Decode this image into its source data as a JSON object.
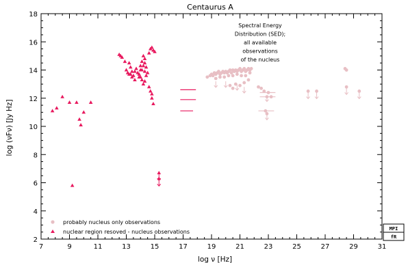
{
  "chart_data": {
    "type": "scatter",
    "title": "Centaurus A",
    "xlabel": "log ν [Hz]",
    "ylabel": "log (νFν) [Jy Hz]",
    "xlim": [
      7,
      31
    ],
    "ylim": [
      2,
      18
    ],
    "xticks": [
      7,
      9,
      11,
      13,
      15,
      17,
      19,
      21,
      23,
      25,
      27,
      29,
      31
    ],
    "yticks": [
      2,
      4,
      6,
      8,
      10,
      12,
      14,
      16,
      18
    ],
    "annotation": [
      "Spectral Energy",
      "Distribution (SED);",
      "all available",
      "observations",
      "of the nucleus"
    ],
    "legend_position": "bottom-left",
    "series": [
      {
        "name": "probably nucleus only observations",
        "marker": "circle",
        "color": "#e8bfc4",
        "points": [
          [
            18.7,
            13.5
          ],
          [
            18.9,
            13.6
          ],
          [
            19.0,
            13.7
          ],
          [
            19.1,
            13.6
          ],
          [
            19.2,
            13.8
          ],
          [
            19.3,
            13.7
          ],
          [
            19.4,
            13.8
          ],
          [
            19.5,
            13.9
          ],
          [
            19.6,
            13.7
          ],
          [
            19.7,
            13.8
          ],
          [
            19.8,
            13.9
          ],
          [
            19.9,
            13.8
          ],
          [
            20.0,
            13.9
          ],
          [
            20.1,
            13.8
          ],
          [
            20.2,
            13.9
          ],
          [
            20.3,
            14.0
          ],
          [
            20.4,
            13.8
          ],
          [
            20.5,
            14.0
          ],
          [
            20.6,
            13.9
          ],
          [
            20.7,
            14.0
          ],
          [
            20.8,
            13.9
          ],
          [
            20.9,
            14.0
          ],
          [
            21.0,
            14.1
          ],
          [
            21.1,
            13.9
          ],
          [
            21.2,
            14.0
          ],
          [
            21.3,
            14.1
          ],
          [
            21.4,
            13.9
          ],
          [
            21.5,
            14.0
          ],
          [
            21.6,
            14.1
          ],
          [
            21.7,
            14.0
          ],
          [
            21.8,
            14.1
          ],
          [
            19.3,
            13.4
          ],
          [
            19.6,
            13.5
          ],
          [
            19.9,
            13.5
          ],
          [
            20.2,
            13.6
          ],
          [
            20.5,
            13.6
          ],
          [
            20.8,
            13.7
          ],
          [
            21.1,
            13.6
          ],
          [
            21.4,
            13.6
          ],
          [
            21.7,
            13.8
          ],
          [
            20.3,
            12.9
          ],
          [
            20.7,
            13.0
          ],
          [
            21.0,
            12.9
          ],
          [
            21.3,
            13.1
          ],
          [
            21.6,
            13.3
          ],
          [
            20.5,
            12.7
          ],
          [
            22.3,
            12.8
          ],
          [
            22.5,
            12.7
          ],
          [
            22.7,
            12.5
          ],
          [
            23.0,
            12.4
          ],
          [
            22.9,
            12.1
          ],
          [
            23.2,
            12.1
          ],
          [
            22.8,
            11.1
          ],
          [
            22.9,
            10.9
          ],
          [
            25.8,
            12.5
          ],
          [
            26.4,
            12.5
          ],
          [
            28.4,
            14.1
          ],
          [
            28.5,
            14.0
          ],
          [
            28.5,
            12.8
          ],
          [
            29.4,
            12.5
          ]
        ],
        "upper_limits": [
          [
            19.3,
            13.2
          ],
          [
            20.0,
            13.2
          ],
          [
            20.8,
            13.0
          ],
          [
            21.3,
            12.8
          ],
          [
            22.9,
            12.2
          ],
          [
            25.8,
            12.4
          ],
          [
            26.4,
            12.4
          ],
          [
            28.5,
            12.7
          ],
          [
            29.4,
            12.4
          ],
          [
            22.9,
            10.9
          ]
        ],
        "x_error_bars": [
          [
            22.4,
            23.5,
            12.4
          ],
          [
            22.4,
            23.5,
            12.1
          ],
          [
            22.3,
            23.4,
            11.1
          ]
        ]
      },
      {
        "name": "nuclear region resoved - nucleus observations",
        "marker": "triangle",
        "color": "#e8195e",
        "points": [
          [
            7.8,
            11.1
          ],
          [
            8.1,
            11.3
          ],
          [
            8.5,
            12.1
          ],
          [
            9.0,
            11.7
          ],
          [
            9.5,
            11.7
          ],
          [
            9.7,
            10.5
          ],
          [
            10.0,
            11.0
          ],
          [
            9.8,
            10.1
          ],
          [
            10.5,
            11.7
          ],
          [
            9.2,
            5.8
          ],
          [
            12.5,
            15.1
          ],
          [
            12.6,
            15.0
          ],
          [
            12.7,
            14.9
          ],
          [
            12.9,
            14.6
          ],
          [
            13.0,
            14.0
          ],
          [
            13.1,
            13.8
          ],
          [
            13.2,
            13.7
          ],
          [
            13.3,
            14.2
          ],
          [
            13.4,
            13.9
          ],
          [
            13.2,
            14.5
          ],
          [
            13.4,
            13.5
          ],
          [
            13.5,
            13.6
          ],
          [
            13.6,
            13.3
          ],
          [
            13.7,
            14.1
          ],
          [
            13.8,
            13.8
          ],
          [
            13.9,
            13.7
          ],
          [
            14.0,
            14.0
          ],
          [
            14.1,
            14.6
          ],
          [
            14.2,
            14.3
          ],
          [
            14.3,
            14.5
          ],
          [
            14.0,
            13.5
          ],
          [
            14.1,
            13.3
          ],
          [
            14.2,
            13.0
          ],
          [
            14.3,
            13.2
          ],
          [
            14.4,
            13.6
          ],
          [
            14.3,
            14.8
          ],
          [
            14.2,
            15.0
          ],
          [
            14.4,
            14.2
          ],
          [
            14.5,
            13.8
          ],
          [
            14.6,
            12.8
          ],
          [
            14.7,
            12.5
          ],
          [
            14.8,
            12.3
          ],
          [
            14.8,
            12.0
          ],
          [
            14.9,
            11.6
          ],
          [
            14.7,
            15.5
          ],
          [
            14.8,
            15.6
          ],
          [
            14.9,
            15.4
          ],
          [
            15.0,
            15.3
          ],
          [
            14.6,
            15.2
          ],
          [
            14.3,
            13.9
          ],
          [
            14.0,
            14.3
          ],
          [
            13.6,
            13.9
          ],
          [
            13.3,
            13.7
          ],
          [
            13.9,
            13.5
          ],
          [
            14.1,
            14.0
          ],
          [
            15.3,
            6.7
          ],
          [
            15.3,
            6.3
          ]
        ],
        "upper_limits": [
          [
            15.3,
            6.6
          ],
          [
            15.3,
            6.2
          ]
        ],
        "x_error_bars": [
          [
            16.8,
            17.9,
            12.6
          ],
          [
            16.8,
            17.9,
            11.9
          ],
          [
            16.8,
            17.7,
            11.1
          ]
        ]
      }
    ]
  },
  "branding": {
    "logo_text": [
      "MPI",
      "fR"
    ]
  }
}
